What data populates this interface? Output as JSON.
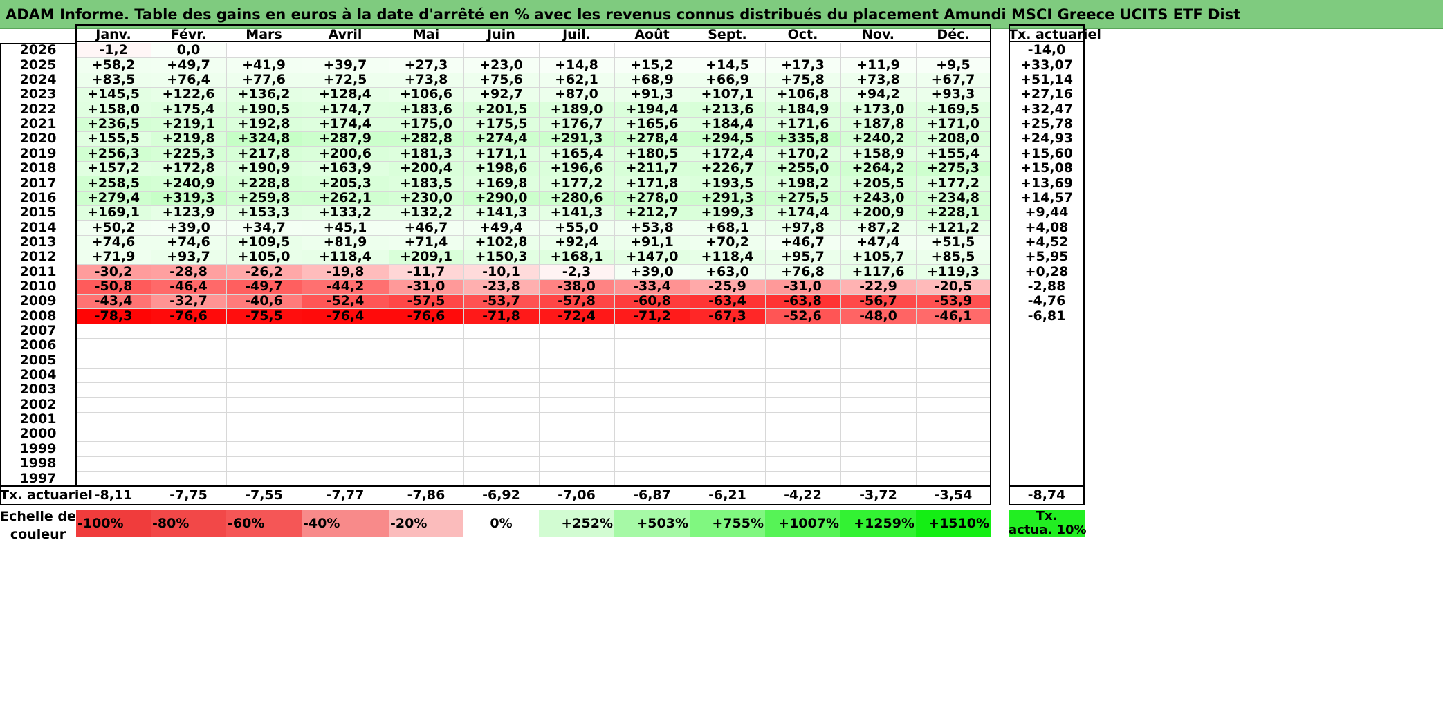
{
  "title": "ADAM Informe. Table des gains en euros à la date d'arrêté en % avec les revenus connus distribués du placement Amundi MSCI Greece UCITS ETF Dist",
  "months": [
    "Janv.",
    "Févr.",
    "Mars",
    "Avril",
    "Mai",
    "Juin",
    "Juil.",
    "Août",
    "Sept.",
    "Oct.",
    "Nov.",
    "Déc."
  ],
  "rate_header": "Tx. actuariel",
  "rows": [
    {
      "year": "2026",
      "values": [
        "-1,2",
        "0,0",
        "",
        "",
        "",
        "",
        "",
        "",
        "",
        "",
        "",
        ""
      ],
      "rate": "-14,0"
    },
    {
      "year": "2025",
      "values": [
        "+58,2",
        "+49,7",
        "+41,9",
        "+39,7",
        "+27,3",
        "+23,0",
        "+14,8",
        "+15,2",
        "+14,5",
        "+17,3",
        "+11,9",
        "+9,5"
      ],
      "rate": "+33,07"
    },
    {
      "year": "2024",
      "values": [
        "+83,5",
        "+76,4",
        "+77,6",
        "+72,5",
        "+73,8",
        "+75,6",
        "+62,1",
        "+68,9",
        "+66,9",
        "+75,8",
        "+73,8",
        "+67,7"
      ],
      "rate": "+51,14"
    },
    {
      "year": "2023",
      "values": [
        "+145,5",
        "+122,6",
        "+136,2",
        "+128,4",
        "+106,6",
        "+92,7",
        "+87,0",
        "+91,3",
        "+107,1",
        "+106,8",
        "+94,2",
        "+93,3"
      ],
      "rate": "+27,16"
    },
    {
      "year": "2022",
      "values": [
        "+158,0",
        "+175,4",
        "+190,5",
        "+174,7",
        "+183,6",
        "+201,5",
        "+189,0",
        "+194,4",
        "+213,6",
        "+184,9",
        "+173,0",
        "+169,5"
      ],
      "rate": "+32,47"
    },
    {
      "year": "2021",
      "values": [
        "+236,5",
        "+219,1",
        "+192,8",
        "+174,4",
        "+175,0",
        "+175,5",
        "+176,7",
        "+165,6",
        "+184,4",
        "+171,6",
        "+187,8",
        "+171,0"
      ],
      "rate": "+25,78"
    },
    {
      "year": "2020",
      "values": [
        "+155,5",
        "+219,8",
        "+324,8",
        "+287,9",
        "+282,8",
        "+274,4",
        "+291,3",
        "+278,4",
        "+294,5",
        "+335,8",
        "+240,2",
        "+208,0"
      ],
      "rate": "+24,93"
    },
    {
      "year": "2019",
      "values": [
        "+256,3",
        "+225,3",
        "+217,8",
        "+200,6",
        "+181,3",
        "+171,1",
        "+165,4",
        "+180,5",
        "+172,4",
        "+170,2",
        "+158,9",
        "+155,4"
      ],
      "rate": "+15,60"
    },
    {
      "year": "2018",
      "values": [
        "+157,2",
        "+172,8",
        "+190,9",
        "+163,9",
        "+200,4",
        "+198,6",
        "+196,6",
        "+211,7",
        "+226,7",
        "+255,0",
        "+264,2",
        "+275,3"
      ],
      "rate": "+15,08"
    },
    {
      "year": "2017",
      "values": [
        "+258,5",
        "+240,9",
        "+228,8",
        "+205,3",
        "+183,5",
        "+169,8",
        "+177,2",
        "+171,8",
        "+193,5",
        "+198,2",
        "+205,5",
        "+177,2"
      ],
      "rate": "+13,69"
    },
    {
      "year": "2016",
      "values": [
        "+279,4",
        "+319,3",
        "+259,8",
        "+262,1",
        "+230,0",
        "+290,0",
        "+280,6",
        "+278,0",
        "+291,3",
        "+275,5",
        "+243,0",
        "+234,8"
      ],
      "rate": "+14,57"
    },
    {
      "year": "2015",
      "values": [
        "+169,1",
        "+123,9",
        "+153,3",
        "+133,2",
        "+132,2",
        "+141,3",
        "+141,3",
        "+212,7",
        "+199,3",
        "+174,4",
        "+200,9",
        "+228,1"
      ],
      "rate": "+9,44"
    },
    {
      "year": "2014",
      "values": [
        "+50,2",
        "+39,0",
        "+34,7",
        "+45,1",
        "+46,7",
        "+49,4",
        "+55,0",
        "+53,8",
        "+68,1",
        "+97,8",
        "+87,2",
        "+121,2"
      ],
      "rate": "+4,08"
    },
    {
      "year": "2013",
      "values": [
        "+74,6",
        "+74,6",
        "+109,5",
        "+81,9",
        "+71,4",
        "+102,8",
        "+92,4",
        "+91,1",
        "+70,2",
        "+46,7",
        "+47,4",
        "+51,5"
      ],
      "rate": "+4,52"
    },
    {
      "year": "2012",
      "values": [
        "+71,9",
        "+93,7",
        "+105,0",
        "+118,4",
        "+209,1",
        "+150,3",
        "+168,1",
        "+147,0",
        "+118,4",
        "+95,7",
        "+105,7",
        "+85,5"
      ],
      "rate": "+5,95"
    },
    {
      "year": "2011",
      "values": [
        "-30,2",
        "-28,8",
        "-26,2",
        "-19,8",
        "-11,7",
        "-10,1",
        "-2,3",
        "+39,0",
        "+63,0",
        "+76,8",
        "+117,6",
        "+119,3"
      ],
      "rate": "+0,28"
    },
    {
      "year": "2010",
      "values": [
        "-50,8",
        "-46,4",
        "-49,7",
        "-44,2",
        "-31,0",
        "-23,8",
        "-38,0",
        "-33,4",
        "-25,9",
        "-31,0",
        "-22,9",
        "-20,5"
      ],
      "rate": "-2,88"
    },
    {
      "year": "2009",
      "values": [
        "-43,4",
        "-32,7",
        "-40,6",
        "-52,4",
        "-57,5",
        "-53,7",
        "-57,8",
        "-60,8",
        "-63,4",
        "-63,8",
        "-56,7",
        "-53,9"
      ],
      "rate": "-4,76"
    },
    {
      "year": "2008",
      "values": [
        "-78,3",
        "-76,6",
        "-75,5",
        "-76,4",
        "-76,6",
        "-71,8",
        "-72,4",
        "-71,2",
        "-67,3",
        "-52,6",
        "-48,0",
        "-46,1"
      ],
      "rate": "-6,81"
    },
    {
      "year": "2007",
      "values": [
        "",
        "",
        "",
        "",
        "",
        "",
        "",
        "",
        "",
        "",
        "",
        ""
      ],
      "rate": ""
    },
    {
      "year": "2006",
      "values": [
        "",
        "",
        "",
        "",
        "",
        "",
        "",
        "",
        "",
        "",
        "",
        ""
      ],
      "rate": ""
    },
    {
      "year": "2005",
      "values": [
        "",
        "",
        "",
        "",
        "",
        "",
        "",
        "",
        "",
        "",
        "",
        ""
      ],
      "rate": ""
    },
    {
      "year": "2004",
      "values": [
        "",
        "",
        "",
        "",
        "",
        "",
        "",
        "",
        "",
        "",
        "",
        ""
      ],
      "rate": ""
    },
    {
      "year": "2003",
      "values": [
        "",
        "",
        "",
        "",
        "",
        "",
        "",
        "",
        "",
        "",
        "",
        ""
      ],
      "rate": ""
    },
    {
      "year": "2002",
      "values": [
        "",
        "",
        "",
        "",
        "",
        "",
        "",
        "",
        "",
        "",
        "",
        ""
      ],
      "rate": ""
    },
    {
      "year": "2001",
      "values": [
        "",
        "",
        "",
        "",
        "",
        "",
        "",
        "",
        "",
        "",
        "",
        ""
      ],
      "rate": ""
    },
    {
      "year": "2000",
      "values": [
        "",
        "",
        "",
        "",
        "",
        "",
        "",
        "",
        "",
        "",
        "",
        ""
      ],
      "rate": ""
    },
    {
      "year": "1999",
      "values": [
        "",
        "",
        "",
        "",
        "",
        "",
        "",
        "",
        "",
        "",
        "",
        ""
      ],
      "rate": ""
    },
    {
      "year": "1998",
      "values": [
        "",
        "",
        "",
        "",
        "",
        "",
        "",
        "",
        "",
        "",
        "",
        ""
      ],
      "rate": ""
    },
    {
      "year": "1997",
      "values": [
        "",
        "",
        "",
        "",
        "",
        "",
        "",
        "",
        "",
        "",
        "",
        ""
      ],
      "rate": ""
    }
  ],
  "footer": {
    "label": "Tx. actuariel",
    "values": [
      "-8,11",
      "-7,75",
      "-7,55",
      "-7,77",
      "-7,86",
      "-6,92",
      "-7,06",
      "-6,87",
      "-6,21",
      "-4,22",
      "-3,72",
      "-3,54"
    ],
    "rate": "-8,74"
  },
  "legend": {
    "label_line1": "Echelle de",
    "label_line2": "couleur",
    "items": [
      {
        "text": "-100%",
        "color": "#f03c3c",
        "align": "left"
      },
      {
        "text": "-80%",
        "color": "#f24848",
        "align": "left"
      },
      {
        "text": "-60%",
        "color": "#f55656",
        "align": "left"
      },
      {
        "text": "-40%",
        "color": "#f88a8a",
        "align": "left"
      },
      {
        "text": "-20%",
        "color": "#fbbcbc",
        "align": "left"
      },
      {
        "text": "0%",
        "color": "#ffffff",
        "align": "center"
      },
      {
        "text": "+252%",
        "color": "#d2fcd2",
        "align": "right"
      },
      {
        "text": "+503%",
        "color": "#a6f9a6",
        "align": "right"
      },
      {
        "text": "+755%",
        "color": "#80f780",
        "align": "right"
      },
      {
        "text": "+1007%",
        "color": "#56f356",
        "align": "right"
      },
      {
        "text": "+1259%",
        "color": "#33f233",
        "align": "right"
      },
      {
        "text": "+1510%",
        "color": "#14ee14",
        "align": "right"
      }
    ],
    "rate_line1": "Tx.",
    "rate_line2": "actua. 10%",
    "rate_color": "#22ee22"
  },
  "colors": {
    "title_bg": "#7fcb7f",
    "neg_strong": "#ff0000",
    "pos_strong": "#c4fdc4"
  }
}
